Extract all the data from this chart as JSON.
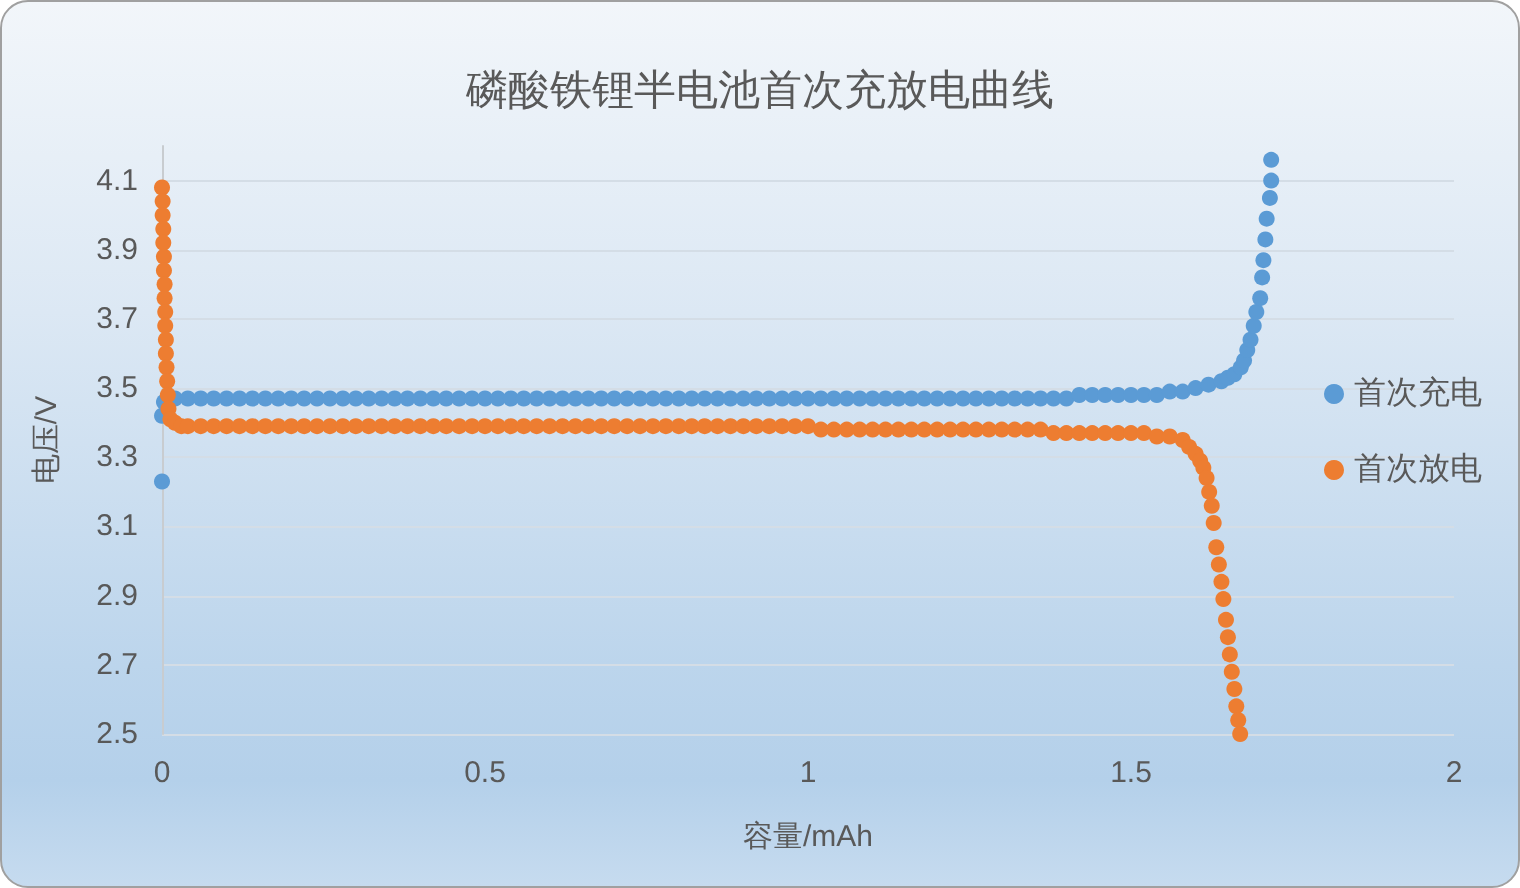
{
  "chart_data": {
    "type": "scatter",
    "title": "磷酸铁锂半电池首次充放电曲线",
    "xlabel": "容量/mAh",
    "ylabel": "电压/V",
    "xlim": [
      0,
      2
    ],
    "xticks": [
      0,
      0.5,
      1,
      1.5,
      2
    ],
    "ylim": [
      2.5,
      4.2
    ],
    "yticks": [
      2.5,
      2.7,
      2.9,
      3.1,
      3.3,
      3.5,
      3.7,
      3.9,
      4.1
    ],
    "grid": "y",
    "legend": "right",
    "marker": "circle",
    "series": [
      {
        "name": "首次充电",
        "color": "#5b9bd5",
        "x": [
          0,
          0,
          0.003,
          0.02,
          0.04,
          0.06,
          0.08,
          0.1,
          0.12,
          0.14,
          0.16,
          0.18,
          0.2,
          0.22,
          0.24,
          0.26,
          0.28,
          0.3,
          0.32,
          0.34,
          0.36,
          0.38,
          0.4,
          0.42,
          0.44,
          0.46,
          0.48,
          0.5,
          0.52,
          0.54,
          0.56,
          0.58,
          0.6,
          0.62,
          0.64,
          0.66,
          0.68,
          0.7,
          0.72,
          0.74,
          0.76,
          0.78,
          0.8,
          0.82,
          0.84,
          0.86,
          0.88,
          0.9,
          0.92,
          0.94,
          0.96,
          0.98,
          1,
          1.02,
          1.04,
          1.06,
          1.08,
          1.1,
          1.12,
          1.14,
          1.16,
          1.18,
          1.2,
          1.22,
          1.24,
          1.26,
          1.28,
          1.3,
          1.32,
          1.34,
          1.36,
          1.38,
          1.4,
          1.42,
          1.44,
          1.46,
          1.48,
          1.5,
          1.52,
          1.54,
          1.56,
          1.58,
          1.6,
          1.62,
          1.64,
          1.65,
          1.66,
          1.67,
          1.675,
          1.68,
          1.685,
          1.69,
          1.694,
          1.7,
          1.703,
          1.705,
          1.708,
          1.71,
          1.715,
          1.717,
          1.717
        ],
        "values": [
          3.23,
          3.42,
          3.46,
          3.47,
          3.47,
          3.47,
          3.47,
          3.47,
          3.47,
          3.47,
          3.47,
          3.47,
          3.47,
          3.47,
          3.47,
          3.47,
          3.47,
          3.47,
          3.47,
          3.47,
          3.47,
          3.47,
          3.47,
          3.47,
          3.47,
          3.47,
          3.47,
          3.47,
          3.47,
          3.47,
          3.47,
          3.47,
          3.47,
          3.47,
          3.47,
          3.47,
          3.47,
          3.47,
          3.47,
          3.47,
          3.47,
          3.47,
          3.47,
          3.47,
          3.47,
          3.47,
          3.47,
          3.47,
          3.47,
          3.47,
          3.47,
          3.47,
          3.47,
          3.47,
          3.47,
          3.47,
          3.47,
          3.47,
          3.47,
          3.47,
          3.47,
          3.47,
          3.47,
          3.47,
          3.47,
          3.47,
          3.47,
          3.47,
          3.47,
          3.47,
          3.47,
          3.47,
          3.47,
          3.48,
          3.48,
          3.48,
          3.48,
          3.48,
          3.48,
          3.48,
          3.49,
          3.49,
          3.5,
          3.51,
          3.52,
          3.53,
          3.54,
          3.56,
          3.58,
          3.61,
          3.64,
          3.68,
          3.72,
          3.76,
          3.82,
          3.87,
          3.93,
          3.99,
          4.05,
          4.1,
          4.16
        ]
      },
      {
        "name": "首次放电",
        "color": "#ed7d31",
        "x": [
          0,
          0.001,
          0.001,
          0.002,
          0.002,
          0.003,
          0.003,
          0.004,
          0.004,
          0.005,
          0.005,
          0.006,
          0.006,
          0.007,
          0.008,
          0.009,
          0.01,
          0.013,
          0.02,
          0.03,
          0.04,
          0.06,
          0.08,
          0.1,
          0.12,
          0.14,
          0.16,
          0.18,
          0.2,
          0.22,
          0.24,
          0.26,
          0.28,
          0.3,
          0.32,
          0.34,
          0.36,
          0.38,
          0.4,
          0.42,
          0.44,
          0.46,
          0.48,
          0.5,
          0.52,
          0.54,
          0.56,
          0.58,
          0.6,
          0.62,
          0.64,
          0.66,
          0.68,
          0.7,
          0.72,
          0.74,
          0.76,
          0.78,
          0.8,
          0.82,
          0.84,
          0.86,
          0.88,
          0.9,
          0.92,
          0.94,
          0.96,
          0.98,
          1,
          1.02,
          1.04,
          1.06,
          1.08,
          1.1,
          1.12,
          1.14,
          1.16,
          1.18,
          1.2,
          1.22,
          1.24,
          1.26,
          1.28,
          1.3,
          1.32,
          1.34,
          1.36,
          1.38,
          1.4,
          1.42,
          1.44,
          1.46,
          1.48,
          1.5,
          1.52,
          1.54,
          1.56,
          1.58,
          1.59,
          1.6,
          1.607,
          1.612,
          1.617,
          1.621,
          1.625,
          1.628,
          1.632,
          1.636,
          1.64,
          1.643,
          1.647,
          1.65,
          1.653,
          1.656,
          1.66,
          1.663,
          1.666,
          1.669
        ],
        "values": [
          4.08,
          4.04,
          4,
          3.96,
          3.92,
          3.88,
          3.84,
          3.8,
          3.76,
          3.72,
          3.68,
          3.64,
          3.6,
          3.56,
          3.52,
          3.48,
          3.44,
          3.41,
          3.4,
          3.39,
          3.39,
          3.39,
          3.39,
          3.39,
          3.39,
          3.39,
          3.39,
          3.39,
          3.39,
          3.39,
          3.39,
          3.39,
          3.39,
          3.39,
          3.39,
          3.39,
          3.39,
          3.39,
          3.39,
          3.39,
          3.39,
          3.39,
          3.39,
          3.39,
          3.39,
          3.39,
          3.39,
          3.39,
          3.39,
          3.39,
          3.39,
          3.39,
          3.39,
          3.39,
          3.39,
          3.39,
          3.39,
          3.39,
          3.39,
          3.39,
          3.39,
          3.39,
          3.39,
          3.39,
          3.39,
          3.39,
          3.39,
          3.39,
          3.39,
          3.38,
          3.38,
          3.38,
          3.38,
          3.38,
          3.38,
          3.38,
          3.38,
          3.38,
          3.38,
          3.38,
          3.38,
          3.38,
          3.38,
          3.38,
          3.38,
          3.38,
          3.38,
          3.37,
          3.37,
          3.37,
          3.37,
          3.37,
          3.37,
          3.37,
          3.37,
          3.36,
          3.36,
          3.35,
          3.33,
          3.31,
          3.29,
          3.27,
          3.24,
          3.2,
          3.16,
          3.11,
          3.04,
          2.99,
          2.94,
          2.89,
          2.83,
          2.78,
          2.73,
          2.68,
          2.63,
          2.58,
          2.54,
          2.5
        ]
      }
    ]
  }
}
